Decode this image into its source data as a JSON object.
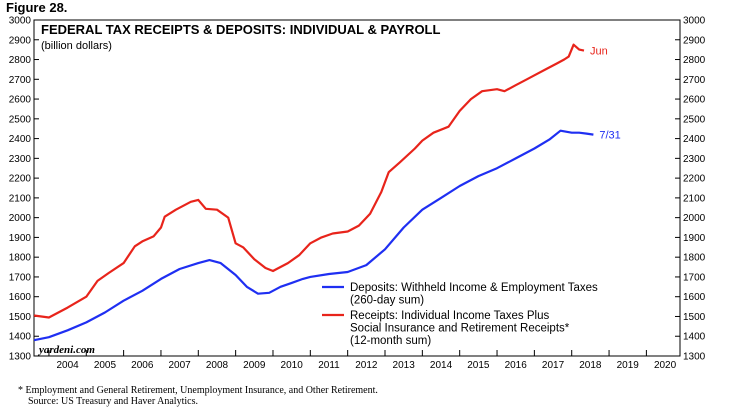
{
  "figure_label": "Figure 28.",
  "footnotes": [
    "*  Employment and General Retirement, Unemployment Insurance, and Other Retirement.",
    "Source: US Treasury and Haver Analytics."
  ],
  "chart_data": {
    "type": "line",
    "title": "FEDERAL TAX RECEIPTS & DEPOSITS: INDIVIDUAL & PAYROLL",
    "subtitle": "(billion dollars)",
    "watermark": "yardeni.com",
    "ylim": [
      1300,
      3000
    ],
    "y_ticks": [
      1300,
      1400,
      1500,
      1600,
      1700,
      1800,
      1900,
      2000,
      2100,
      2200,
      2300,
      2400,
      2500,
      2600,
      2700,
      2800,
      2900,
      3000
    ],
    "xlim": [
      2003.6,
      2020.9
    ],
    "x_labels": [
      "2004",
      "2005",
      "2006",
      "2007",
      "2008",
      "2009",
      "2010",
      "2011",
      "2012",
      "2013",
      "2014",
      "2015",
      "2016",
      "2017",
      "2018",
      "2019",
      "2020"
    ],
    "grid": false,
    "legend_position": "bottom-right",
    "series": [
      {
        "name": "Deposits: Withheld Income & Employment Taxes",
        "legend_lines": [
          "Deposits: Withheld Income & Employment Taxes",
          "(260-day sum)"
        ],
        "color": "#1f2ff2",
        "end_label": "7/31",
        "x": [
          2003.6,
          2004.0,
          2004.5,
          2005.0,
          2005.5,
          2006.0,
          2006.5,
          2007.0,
          2007.5,
          2008.0,
          2008.3,
          2008.6,
          2009.0,
          2009.3,
          2009.6,
          2009.9,
          2010.2,
          2010.5,
          2010.8,
          2011.0,
          2011.5,
          2012.0,
          2012.5,
          2013.0,
          2013.5,
          2014.0,
          2014.5,
          2015.0,
          2015.5,
          2016.0,
          2016.5,
          2017.0,
          2017.4,
          2017.7,
          2017.85,
          2018.0,
          2018.2,
          2018.4,
          2018.58
        ],
        "values": [
          1380,
          1395,
          1430,
          1470,
          1520,
          1580,
          1630,
          1690,
          1740,
          1770,
          1785,
          1770,
          1710,
          1650,
          1615,
          1620,
          1650,
          1670,
          1690,
          1700,
          1715,
          1725,
          1760,
          1840,
          1950,
          2040,
          2100,
          2160,
          2210,
          2250,
          2300,
          2350,
          2395,
          2440,
          2435,
          2430,
          2430,
          2425,
          2420
        ]
      },
      {
        "name": "Receipts: Individual Income Taxes Plus Social Insurance and Retirement Receipts*",
        "legend_lines": [
          "Receipts: Individual Income Taxes Plus",
          "Social Insurance and Retirement Receipts*",
          "(12-month sum)"
        ],
        "color": "#e8241b",
        "end_label": "Jun",
        "x": [
          2003.6,
          2004.0,
          2004.5,
          2005.0,
          2005.3,
          2005.6,
          2006.0,
          2006.3,
          2006.5,
          2006.8,
          2007.0,
          2007.1,
          2007.4,
          2007.8,
          2008.0,
          2008.2,
          2008.5,
          2008.8,
          2009.0,
          2009.2,
          2009.5,
          2009.8,
          2010.0,
          2010.1,
          2010.4,
          2010.7,
          2011.0,
          2011.3,
          2011.6,
          2012.0,
          2012.3,
          2012.6,
          2012.9,
          2013.1,
          2013.4,
          2013.8,
          2014.0,
          2014.3,
          2014.7,
          2015.0,
          2015.3,
          2015.6,
          2016.0,
          2016.2,
          2016.5,
          2016.8,
          2017.0,
          2017.3,
          2017.6,
          2017.8,
          2017.92,
          2018.05,
          2018.2,
          2018.33
        ],
        "values": [
          1505,
          1495,
          1545,
          1600,
          1680,
          1720,
          1770,
          1855,
          1880,
          1905,
          1950,
          2005,
          2040,
          2080,
          2090,
          2045,
          2040,
          2000,
          1870,
          1850,
          1790,
          1745,
          1730,
          1740,
          1770,
          1810,
          1870,
          1900,
          1920,
          1930,
          1960,
          2020,
          2130,
          2230,
          2280,
          2350,
          2390,
          2430,
          2460,
          2540,
          2600,
          2640,
          2650,
          2640,
          2670,
          2700,
          2720,
          2750,
          2780,
          2800,
          2815,
          2875,
          2850,
          2845
        ]
      }
    ]
  }
}
